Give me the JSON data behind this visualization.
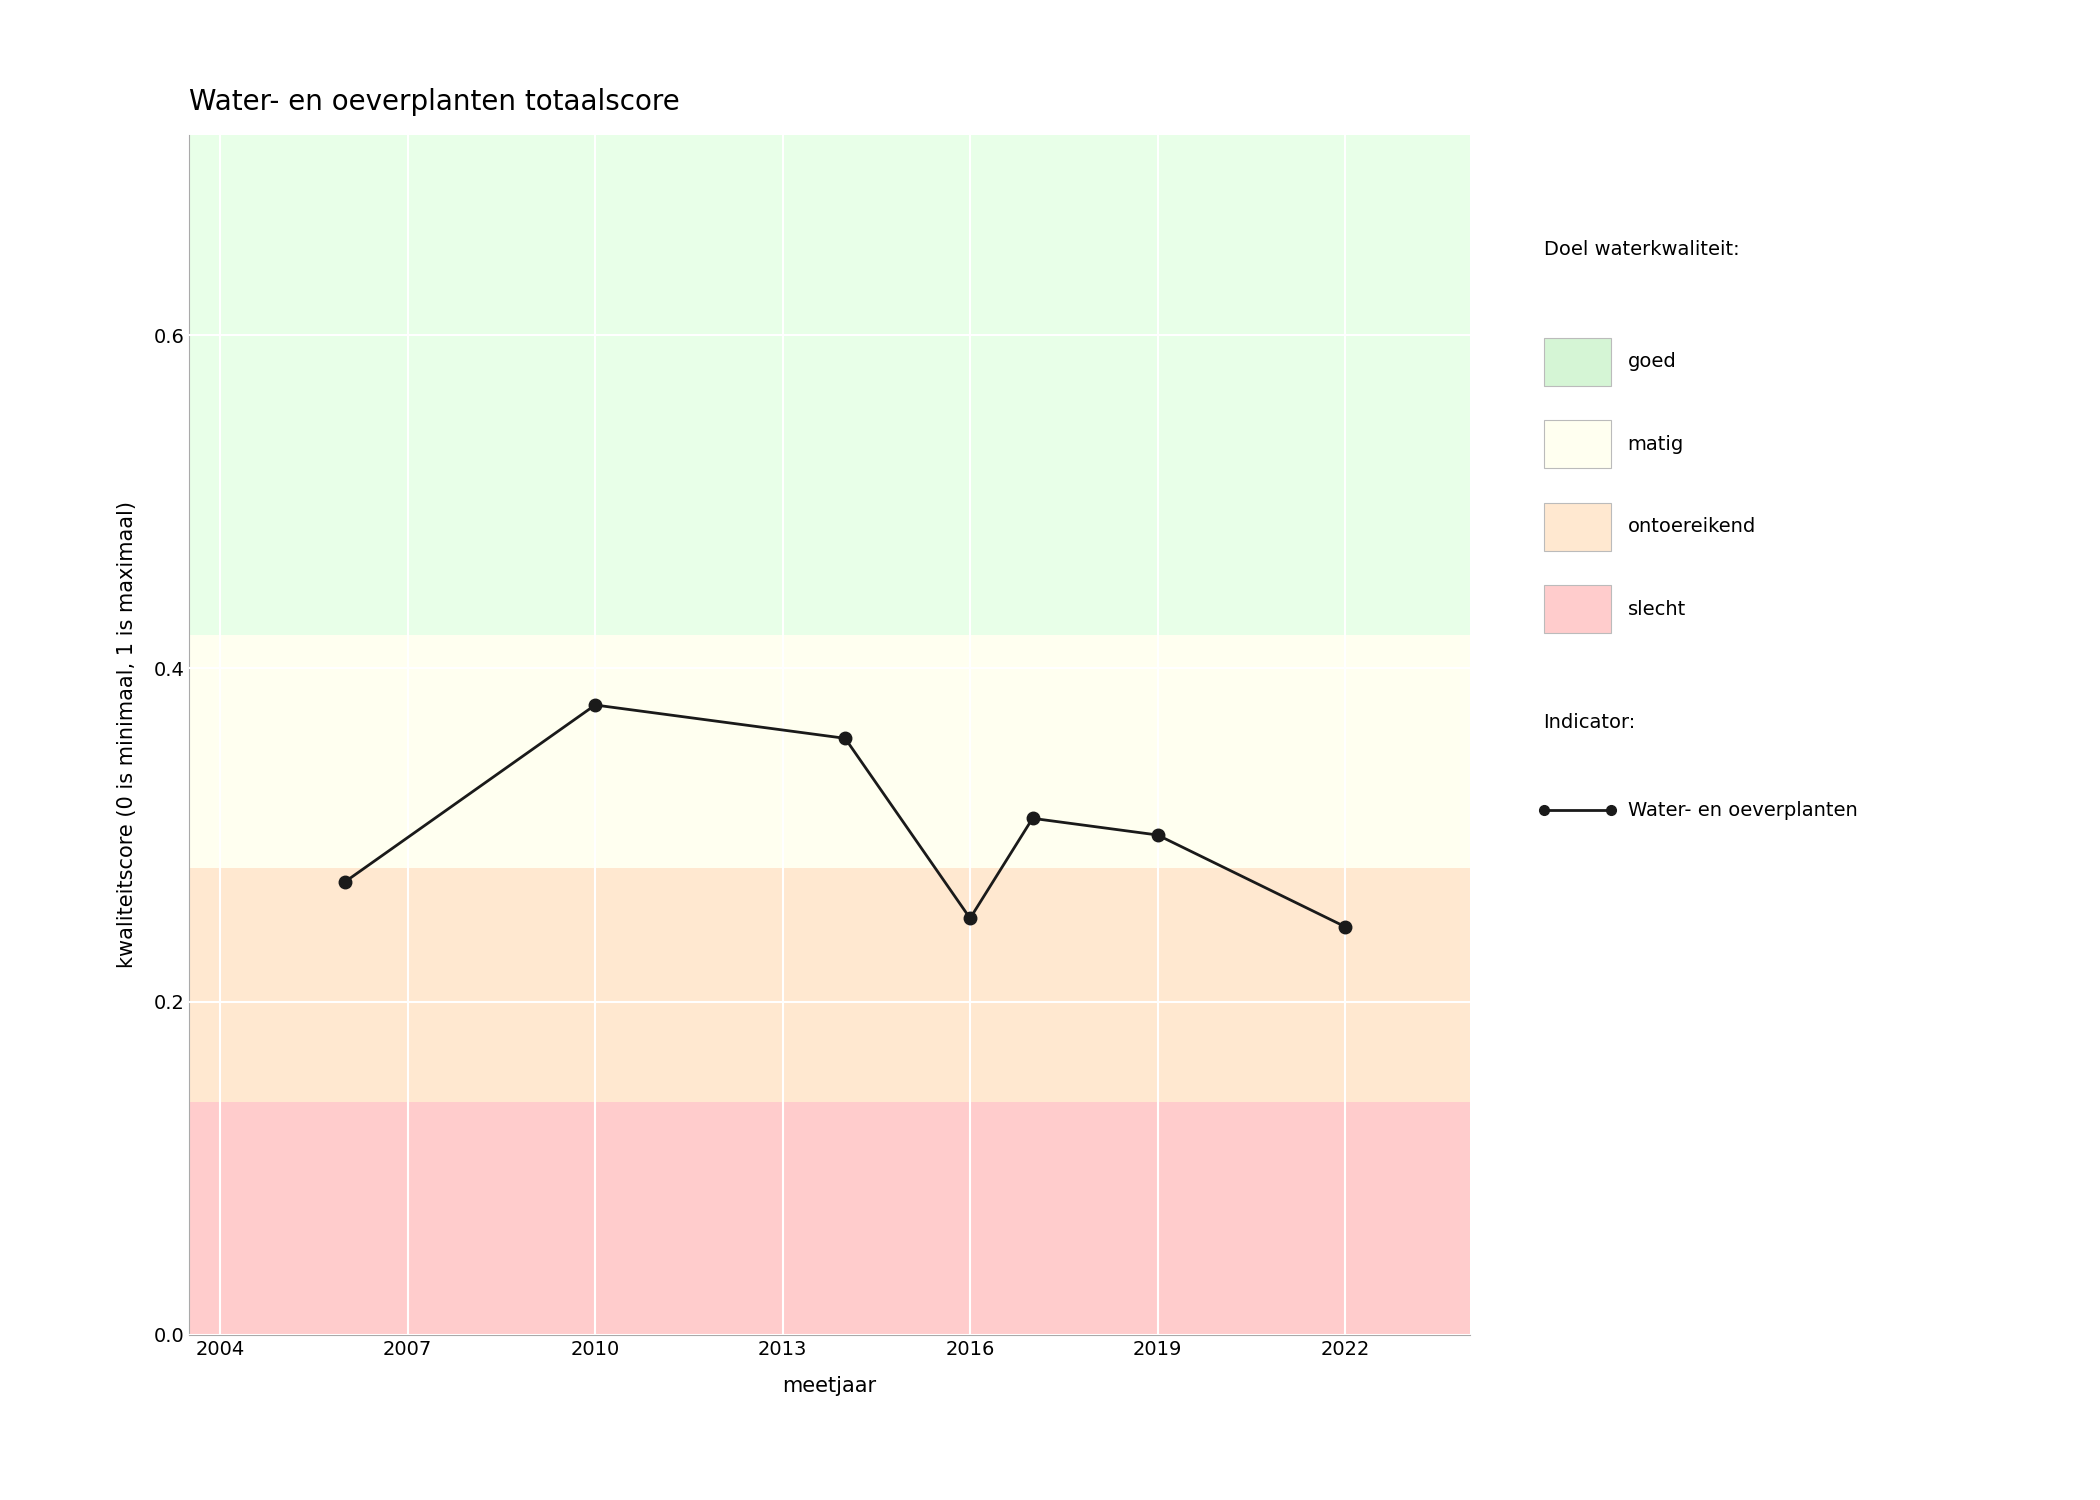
{
  "title": "Water- en oeverplanten totaalscore",
  "xlabel": "meetjaar",
  "ylabel": "kwaliteitscore (0 is minimaal, 1 is maximaal)",
  "xlim": [
    2003.5,
    2024.0
  ],
  "ylim": [
    0,
    0.72
  ],
  "xticks": [
    2004,
    2007,
    2010,
    2013,
    2016,
    2019,
    2022
  ],
  "yticks": [
    0.0,
    0.2,
    0.4,
    0.6
  ],
  "years": [
    2006,
    2010,
    2014,
    2016,
    2017,
    2019,
    2022
  ],
  "values": [
    0.272,
    0.378,
    0.358,
    0.25,
    0.31,
    0.3,
    0.245
  ],
  "bg_zones": [
    {
      "ymin": 0.0,
      "ymax": 0.14,
      "color": "#FFCCCC",
      "label": "slecht"
    },
    {
      "ymin": 0.14,
      "ymax": 0.28,
      "color": "#FFE8D0",
      "label": "ontoereikend"
    },
    {
      "ymin": 0.28,
      "ymax": 0.42,
      "color": "#FFFFF0",
      "label": "matig"
    },
    {
      "ymin": 0.42,
      "ymax": 0.72,
      "color": "#E8FFE8",
      "label": "goed"
    }
  ],
  "legend_title_quality": "Doel waterkwaliteit:",
  "legend_items_quality": [
    {
      "color": "#D5F5D5",
      "label": "goed"
    },
    {
      "color": "#FFFFF0",
      "label": "matig"
    },
    {
      "color": "#FFE8D0",
      "label": "ontoereikend"
    },
    {
      "color": "#FFCCCC",
      "label": "slecht"
    }
  ],
  "legend_title_indicator": "Indicator:",
  "legend_indicator_label": "Water- en oeverplanten",
  "line_color": "#1a1a1a",
  "marker_color": "#1a1a1a",
  "marker_size": 9,
  "line_width": 2.0,
  "grid_color": "#ffffff",
  "title_fontsize": 20,
  "label_fontsize": 15,
  "tick_fontsize": 14,
  "legend_fontsize": 14
}
